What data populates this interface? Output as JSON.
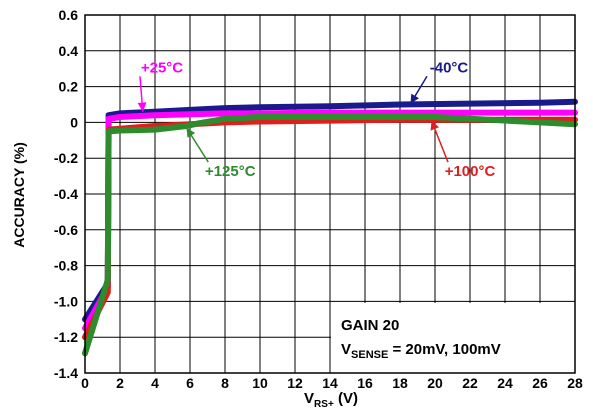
{
  "chart_data": {
    "type": "line",
    "xlabel_main": "V",
    "xlabel_sub": "RS+",
    "xlabel_unit": " (V)",
    "ylabel": "ACCURACY (%)",
    "xlim": [
      0,
      28
    ],
    "ylim": [
      -1.4,
      0.6
    ],
    "x_ticks": [
      "0",
      "2",
      "4",
      "6",
      "8",
      "10",
      "12",
      "14",
      "16",
      "18",
      "20",
      "22",
      "24",
      "26",
      "28"
    ],
    "y_ticks": [
      "0.6",
      "0.4",
      "0.2",
      "0",
      "-0.2",
      "-0.4",
      "-0.6",
      "-0.8",
      "-1.0",
      "-1.2",
      "-1.4"
    ],
    "grid": true,
    "annotation": {
      "line1": "GAIN 20",
      "line2_main": "V",
      "line2_sub": "SENSE",
      "line2_rest": " = 20mV, 100mV"
    },
    "series": [
      {
        "name": "-40°C",
        "color": "#1a1a8c",
        "x": [
          0,
          1.3,
          1.35,
          2,
          4,
          6,
          8,
          10,
          14,
          18,
          22,
          26,
          28
        ],
        "y": [
          -1.1,
          -0.9,
          0.04,
          0.05,
          0.06,
          0.07,
          0.08,
          0.085,
          0.09,
          0.1,
          0.105,
          0.11,
          0.115
        ]
      },
      {
        "name": "+25°C",
        "color": "#ff00ff",
        "x": [
          0,
          1.3,
          1.35,
          2,
          4,
          6,
          8,
          10,
          14,
          18,
          22,
          26,
          28
        ],
        "y": [
          -1.15,
          -0.92,
          0.02,
          0.03,
          0.04,
          0.045,
          0.05,
          0.05,
          0.055,
          0.055,
          0.055,
          0.055,
          0.055
        ]
      },
      {
        "name": "+100°C",
        "color": "#e01e1e",
        "x": [
          0,
          1.3,
          1.35,
          2,
          4,
          6,
          8,
          10,
          14,
          18,
          22,
          26,
          28
        ],
        "y": [
          -1.2,
          -0.95,
          -0.04,
          -0.035,
          -0.02,
          -0.01,
          0.0,
          0.005,
          0.01,
          0.015,
          0.015,
          0.015,
          0.015
        ]
      },
      {
        "name": "+125°C",
        "color": "#2e8b2e",
        "x": [
          0,
          1.3,
          1.35,
          2,
          4,
          5.8,
          6.5,
          8,
          10,
          14,
          18,
          20,
          22,
          26,
          28
        ],
        "y": [
          -1.29,
          -0.88,
          -0.05,
          -0.045,
          -0.04,
          -0.02,
          -0.005,
          0.02,
          0.03,
          0.03,
          0.03,
          0.03,
          0.02,
          0.0,
          -0.01
        ]
      }
    ]
  },
  "labels": [
    {
      "text": "+25°C",
      "color": "#ff00ff",
      "at": [
        4.4,
        0.28
      ],
      "arrow_to": [
        3.3,
        0.06
      ]
    },
    {
      "text": "-40°C",
      "color": "#1a1a8c",
      "at": [
        20.8,
        0.28
      ],
      "arrow_to": [
        18.6,
        0.105
      ]
    },
    {
      "text": "+125°C",
      "color": "#2e8b2e",
      "at": [
        8.3,
        -0.3
      ],
      "arrow_to": [
        5.8,
        -0.03
      ]
    },
    {
      "text": "+100°C",
      "color": "#e01e1e",
      "at": [
        22.0,
        -0.3
      ],
      "arrow_to": [
        19.8,
        0.01
      ]
    }
  ]
}
